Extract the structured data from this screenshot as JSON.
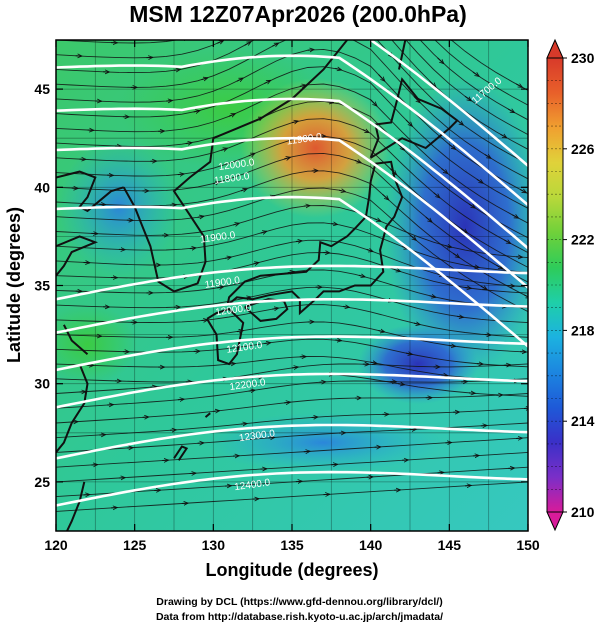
{
  "chart_data": {
    "type": "heatmap",
    "title": "MSM 12Z07Apr2026 (200.0hPa)",
    "xlabel": "Longitude (degrees)",
    "ylabel": "Latitude  (degrees)",
    "xlim": [
      120,
      150
    ],
    "ylim": [
      22.5,
      47.5
    ],
    "xticks": [
      120,
      125,
      130,
      135,
      140,
      145,
      150
    ],
    "yticks": [
      25,
      30,
      35,
      40,
      45
    ],
    "grid": true,
    "colorbar": {
      "min": 210,
      "max": 230,
      "ticks": [
        210,
        214,
        218,
        222,
        226,
        230
      ],
      "extend": "both",
      "colors": [
        "#d81b9a",
        "#7a2fc8",
        "#3a30c8",
        "#1e5ad8",
        "#1c86e0",
        "#1cb2e0",
        "#1fcfa8",
        "#2ecc5a",
        "#6fd13a",
        "#b8d83a",
        "#e0d23a",
        "#f0a030",
        "#e8602a",
        "#d83a2a"
      ]
    },
    "contours": [
      {
        "label": "11700.0",
        "lon": 147.5,
        "lat": 44.8
      },
      {
        "label": "11800.0",
        "lon": 131.2,
        "lat": 40.3
      },
      {
        "label": "11900.0",
        "lon": 135.8,
        "lat": 42.3
      },
      {
        "label": "11900.0",
        "lon": 130.3,
        "lat": 37.3
      },
      {
        "label": "12000.0",
        "lon": 131.5,
        "lat": 41.0
      },
      {
        "label": "11900.0",
        "lon": 130.6,
        "lat": 35.0
      },
      {
        "label": "12000.0",
        "lon": 131.3,
        "lat": 33.6
      },
      {
        "label": "12100.0",
        "lon": 132.0,
        "lat": 31.7
      },
      {
        "label": "12200.0",
        "lon": 132.2,
        "lat": 29.8
      },
      {
        "label": "12300.0",
        "lon": 132.8,
        "lat": 27.2
      },
      {
        "label": "12400.0",
        "lon": 132.5,
        "lat": 24.7
      }
    ]
  },
  "credits": {
    "line1": "Drawing by DCL (https://www.gfd-dennou.org/library/dcl/)",
    "line2": "Data from http://database.rish.kyoto-u.ac.jp/arch/jmadata/"
  }
}
